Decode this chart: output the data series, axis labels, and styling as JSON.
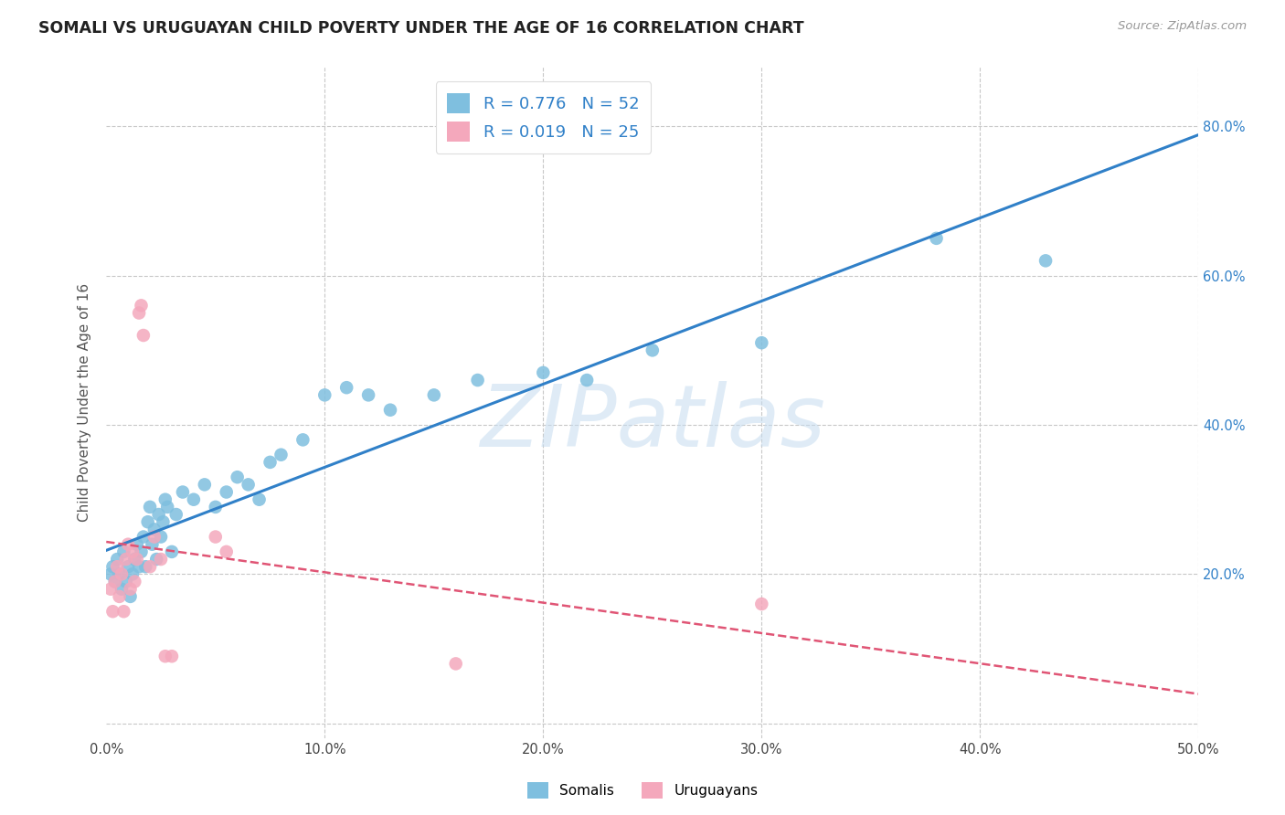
{
  "title": "SOMALI VS URUGUAYAN CHILD POVERTY UNDER THE AGE OF 16 CORRELATION CHART",
  "source": "Source: ZipAtlas.com",
  "ylabel": "Child Poverty Under the Age of 16",
  "xlim": [
    0.0,
    50.0
  ],
  "ylim": [
    -2.0,
    88.0
  ],
  "xticks": [
    0.0,
    10.0,
    20.0,
    30.0,
    40.0,
    50.0
  ],
  "xtick_labels": [
    "0.0%",
    "10.0%",
    "20.0%",
    "30.0%",
    "40.0%",
    "50.0%"
  ],
  "yticks": [
    0.0,
    20.0,
    40.0,
    60.0,
    80.0
  ],
  "ytick_labels_right": [
    "",
    "20.0%",
    "40.0%",
    "60.0%",
    "80.0%"
  ],
  "somali_color": "#7fbfdf",
  "uruguayan_color": "#f4a8bc",
  "somali_line_color": "#3080c8",
  "uruguayan_line_color": "#e05575",
  "somali_R": 0.776,
  "somali_N": 52,
  "uruguayan_R": 0.019,
  "uruguayan_N": 25,
  "watermark": "ZIPatlas",
  "background_color": "#ffffff",
  "grid_color": "#c8c8c8",
  "somali_x": [
    0.2,
    0.3,
    0.4,
    0.5,
    0.6,
    0.7,
    0.8,
    0.9,
    1.0,
    1.1,
    1.2,
    1.3,
    1.4,
    1.5,
    1.6,
    1.7,
    1.8,
    1.9,
    2.0,
    2.1,
    2.2,
    2.3,
    2.4,
    2.5,
    2.6,
    2.7,
    2.8,
    3.0,
    3.2,
    3.5,
    4.0,
    4.5,
    5.0,
    5.5,
    6.0,
    6.5,
    7.0,
    7.5,
    8.0,
    9.0,
    10.0,
    11.0,
    12.0,
    13.0,
    15.0,
    17.0,
    20.0,
    22.0,
    25.0,
    30.0,
    38.0,
    43.0
  ],
  "somali_y": [
    20.0,
    21.0,
    19.0,
    22.0,
    20.0,
    18.0,
    23.0,
    19.0,
    21.0,
    17.0,
    20.0,
    22.0,
    24.0,
    21.0,
    23.0,
    25.0,
    21.0,
    27.0,
    29.0,
    24.0,
    26.0,
    22.0,
    28.0,
    25.0,
    27.0,
    30.0,
    29.0,
    23.0,
    28.0,
    31.0,
    30.0,
    32.0,
    29.0,
    31.0,
    33.0,
    32.0,
    30.0,
    35.0,
    36.0,
    38.0,
    44.0,
    45.0,
    44.0,
    42.0,
    44.0,
    46.0,
    47.0,
    46.0,
    50.0,
    51.0,
    65.0,
    62.0
  ],
  "uruguayan_x": [
    0.2,
    0.3,
    0.4,
    0.5,
    0.6,
    0.7,
    0.8,
    0.9,
    1.0,
    1.1,
    1.2,
    1.3,
    1.4,
    1.5,
    1.6,
    1.7,
    2.0,
    2.2,
    2.5,
    2.7,
    3.0,
    5.0,
    5.5,
    16.0,
    30.0
  ],
  "uruguayan_y": [
    18.0,
    15.0,
    19.0,
    21.0,
    17.0,
    20.0,
    15.0,
    22.0,
    24.0,
    18.0,
    23.0,
    19.0,
    22.0,
    55.0,
    56.0,
    52.0,
    21.0,
    25.0,
    22.0,
    9.0,
    9.0,
    25.0,
    23.0,
    8.0,
    16.0
  ]
}
